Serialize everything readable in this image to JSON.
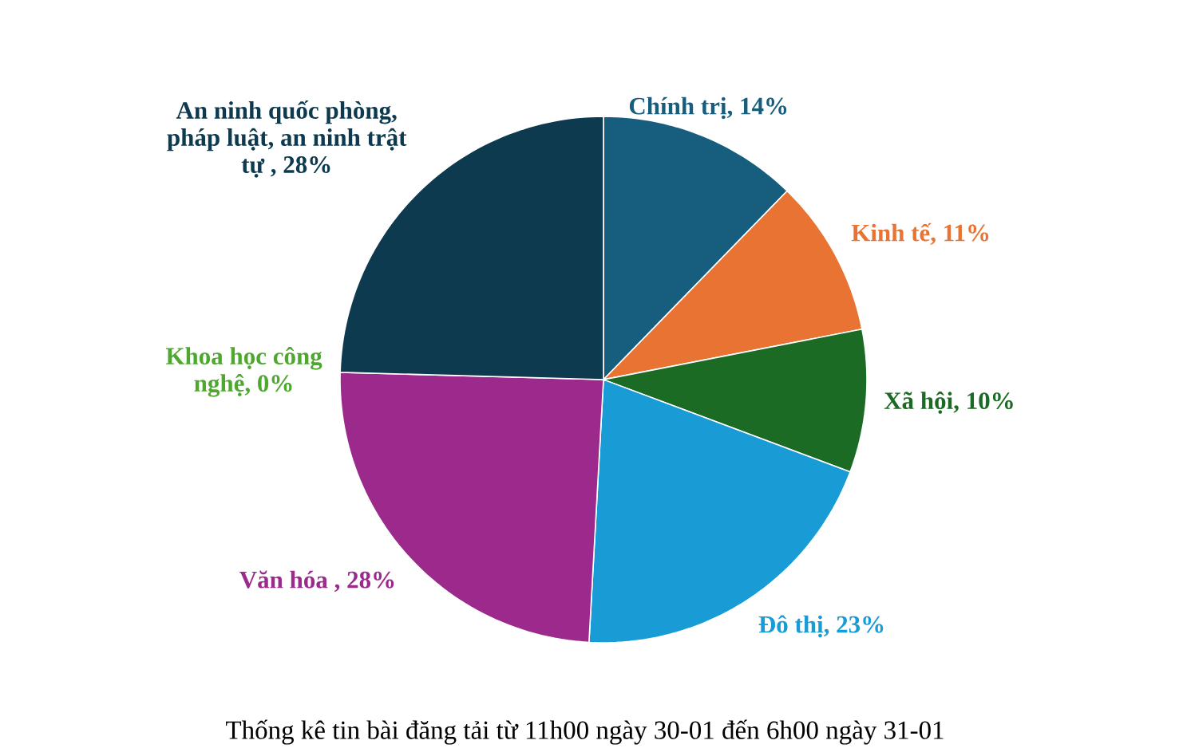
{
  "chart_data": {
    "type": "pie",
    "title": "Thống kê tin bài đăng tải từ 11h00 ngày 30-01 đến 6h00 ngày 31-01",
    "categories": [
      "Chính trị, 14%",
      "Kinh tế, 11%",
      "Xã hội, 10%",
      "Đô thị, 23%",
      "Văn hóa , 28%",
      "Khoa học công nghệ, 0%",
      "An ninh quốc phòng, pháp luật, an ninh trật tự , 28%"
    ],
    "values": [
      14,
      11,
      10,
      23,
      28,
      0,
      28
    ],
    "colors": [
      "#175e7e",
      "#e87332",
      "#1c6b24",
      "#199bd5",
      "#9c2a8c",
      "#4ea72e",
      "#0e3a4f"
    ]
  }
}
